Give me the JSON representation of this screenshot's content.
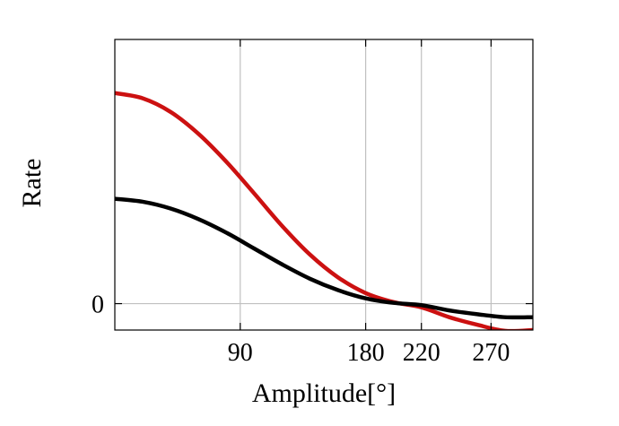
{
  "chart_data": {
    "type": "line",
    "title": "",
    "xlabel": "Amplitude[°]",
    "ylabel": "Rate",
    "xlim": [
      0,
      300
    ],
    "ylim": [
      -0.35,
      3.5
    ],
    "grid": {
      "x": true,
      "y": true
    },
    "legend": "none",
    "x_ticks": [
      90,
      180,
      220,
      270
    ],
    "x_tick_labels": [
      "90",
      "180",
      "220",
      "270"
    ],
    "y_ticks": [
      0
    ],
    "y_tick_labels": [
      "0"
    ],
    "colors": {
      "frame": "#000000",
      "grid": "#c0c0c0"
    },
    "series": [
      {
        "color": "#cc1111",
        "x": [
          0,
          20,
          40,
          60,
          80,
          100,
          120,
          140,
          160,
          180,
          200,
          220,
          240,
          260,
          280,
          300
        ],
        "y": [
          2.79,
          2.72,
          2.54,
          2.25,
          1.88,
          1.46,
          1.03,
          0.65,
          0.35,
          0.14,
          0.02,
          -0.05,
          -0.18,
          -0.28,
          -0.36,
          -0.35
        ]
      },
      {
        "color": "#000000",
        "x": [
          0,
          20,
          40,
          60,
          80,
          100,
          120,
          140,
          160,
          180,
          200,
          220,
          240,
          260,
          280,
          300
        ],
        "y": [
          1.39,
          1.35,
          1.26,
          1.12,
          0.94,
          0.73,
          0.52,
          0.33,
          0.18,
          0.07,
          0.01,
          -0.02,
          -0.09,
          -0.14,
          -0.18,
          -0.18
        ]
      }
    ]
  }
}
